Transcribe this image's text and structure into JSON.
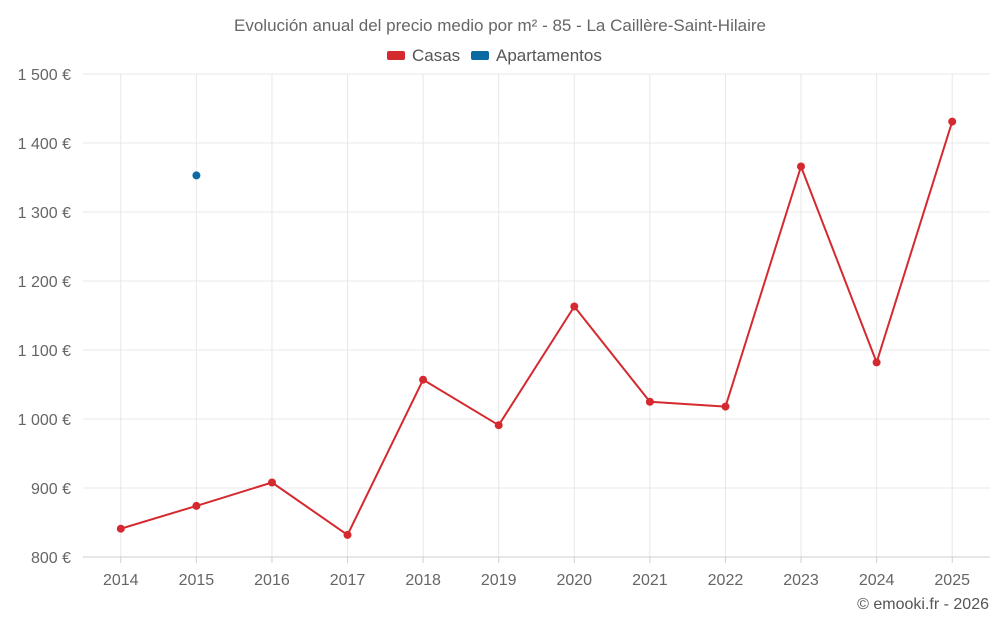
{
  "chart_data": {
    "type": "line",
    "title": "Evolución anual del precio medio por m² - 85 - La Caillère-Saint-Hilaire",
    "categories": [
      "2014",
      "2015",
      "2016",
      "2017",
      "2018",
      "2019",
      "2020",
      "2021",
      "2022",
      "2023",
      "2024",
      "2025"
    ],
    "series": [
      {
        "name": "Casas",
        "color": "#d42a2f",
        "values": [
          841,
          874,
          908,
          832,
          1057,
          991,
          1163,
          1025,
          1018,
          1366,
          1082,
          1431
        ]
      },
      {
        "name": "Apartamentos",
        "color": "#0b6aa2",
        "values": [
          null,
          1353,
          null,
          null,
          null,
          null,
          null,
          null,
          null,
          null,
          null,
          null
        ]
      }
    ],
    "ylim": [
      800,
      1500
    ],
    "yticks": [
      800,
      900,
      1000,
      1100,
      1200,
      1300,
      1400,
      1500
    ],
    "ytick_labels": [
      "800 €",
      "900 €",
      "1 000 €",
      "1 100 €",
      "1 200 €",
      "1 300 €",
      "1 400 €",
      "1 500 €"
    ],
    "grid": true,
    "legend_position": "top-center",
    "xlabel": "",
    "ylabel": ""
  },
  "credit": "© emooki.fr - 2026"
}
